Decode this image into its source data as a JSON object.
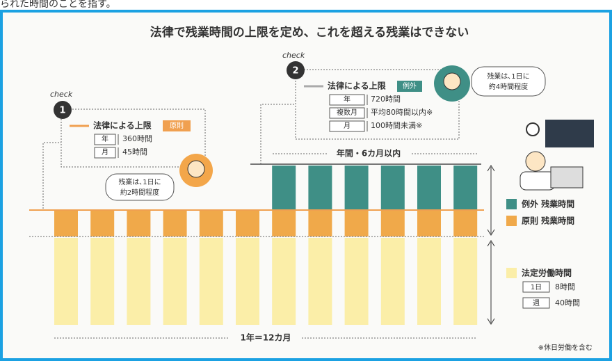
{
  "header": {
    "caption": "られた時間のことを指す。"
  },
  "title": "法律で残業時間の上限を定め、これを超える残業はできない",
  "check1": {
    "tag": "check",
    "number": "1",
    "heading": "法律による上限",
    "badge": "原則",
    "rows": [
      [
        "年",
        "360時間"
      ],
      [
        "月",
        "45時間"
      ]
    ],
    "speech": [
      "残業は､1日に",
      "約2時間程度"
    ]
  },
  "check2": {
    "tag": "check",
    "number": "2",
    "heading": "法律による上限",
    "badge": "例外",
    "rows": [
      [
        "年",
        "720時間"
      ],
      [
        "複数月",
        "平均80時間以内※"
      ],
      [
        "月",
        "100時間未満※"
      ]
    ],
    "speech": [
      "残業は､1日に",
      "約4時間程度"
    ]
  },
  "period_label": "年間・6カ月以内",
  "legend": {
    "exception": "例外 残業時間",
    "principle": "原則 残業時間",
    "statutory": "法定労働時間",
    "rows": [
      [
        "1日",
        "8時間"
      ],
      [
        "週",
        "40時間"
      ]
    ]
  },
  "year_label": "1年＝12カ月",
  "footnote": "※休日労働を含む"
}
